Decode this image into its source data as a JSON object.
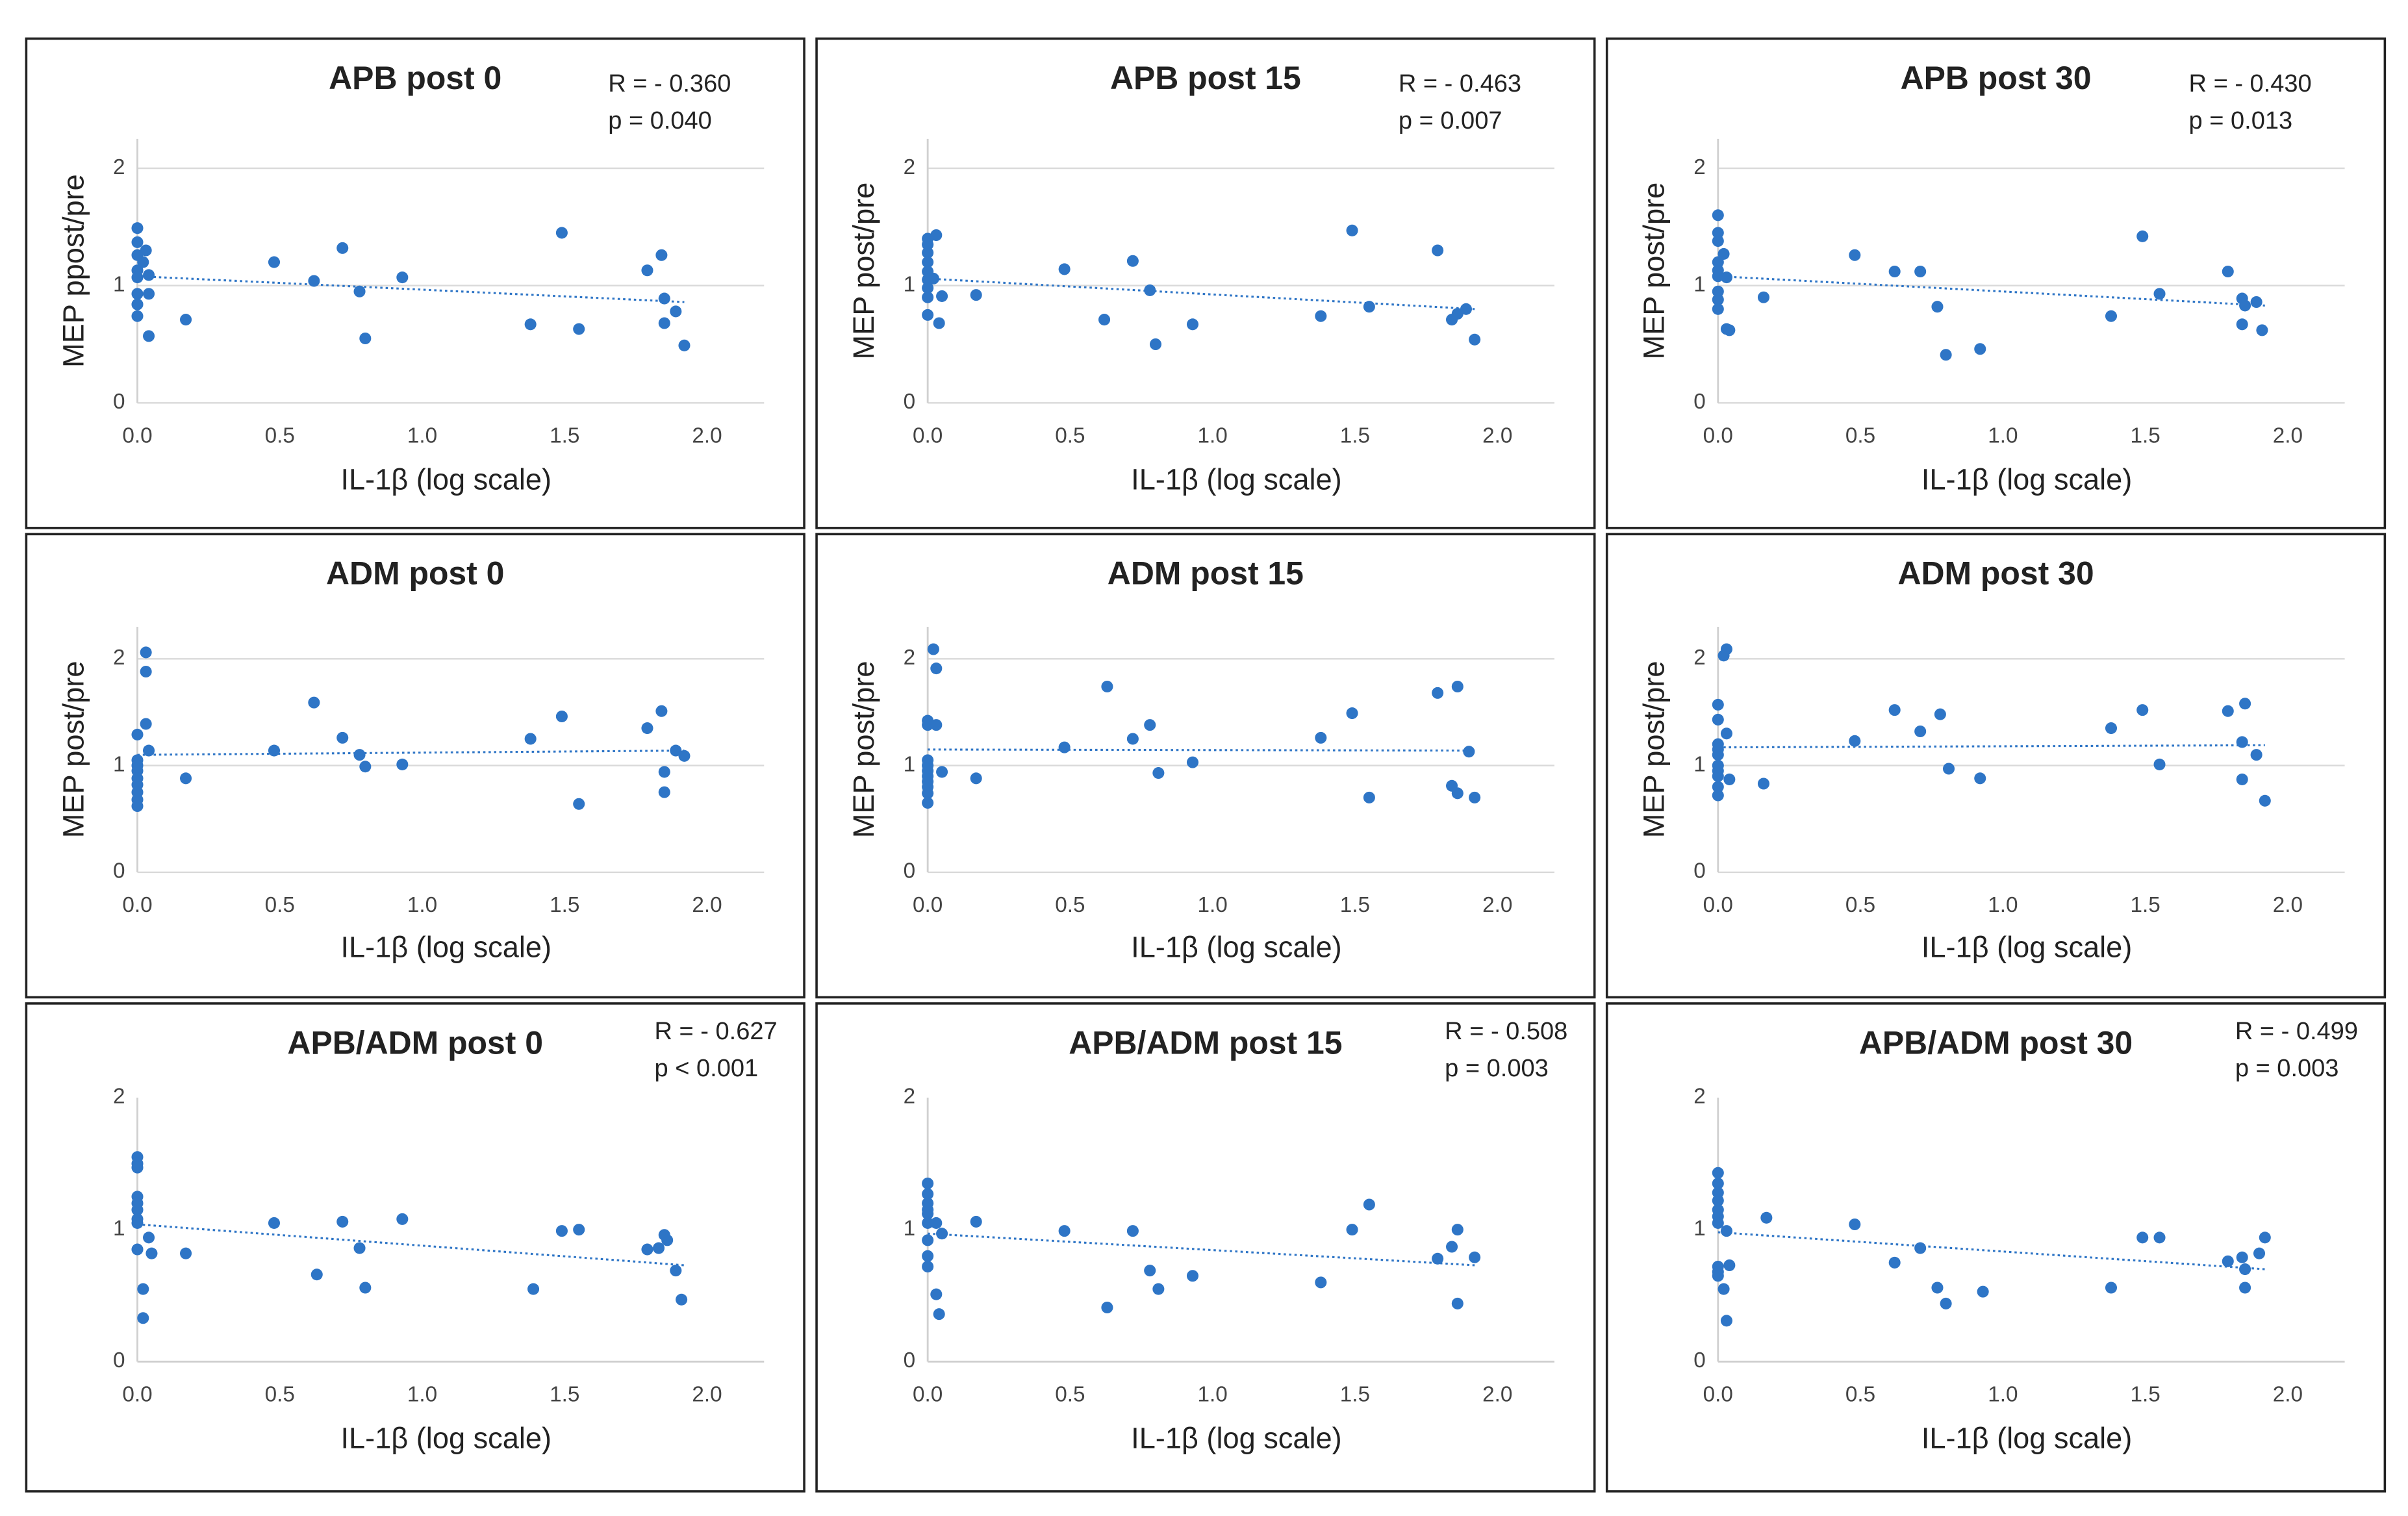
{
  "chart_data": [
    {
      "type": "scatter",
      "title": "APB post 0",
      "annotation": [
        "R = - 0.360",
        "p = 0.040"
      ],
      "x_label": "IL-1β (log scale)",
      "y_label": "MEP ppost/pre",
      "color": "#2e75c6",
      "grid": true,
      "x": [
        0,
        0,
        0,
        0,
        0,
        0,
        0,
        0,
        0.02,
        0.03,
        0.04,
        0.04,
        0.04,
        0.17,
        0.48,
        0.62,
        0.72,
        0.78,
        0.8,
        0.93,
        1.38,
        1.49,
        1.55,
        1.79,
        1.84,
        1.85,
        1.85,
        1.89,
        1.92
      ],
      "y": [
        1.49,
        1.37,
        1.26,
        1.13,
        1.07,
        0.93,
        0.84,
        0.74,
        1.2,
        1.3,
        0.93,
        0.57,
        1.09,
        0.71,
        1.2,
        1.04,
        1.32,
        0.95,
        0.55,
        1.07,
        0.67,
        1.45,
        0.63,
        1.13,
        1.26,
        0.89,
        0.68,
        0.78,
        0.49
      ],
      "trendline": {
        "x": [
          0,
          1.92
        ],
        "y": [
          1.08,
          0.86
        ]
      },
      "xlim": [
        0,
        2.2
      ],
      "ylim": [
        0,
        2.25
      ],
      "xticks": [
        {
          "value": 0,
          "label": "0.0"
        },
        {
          "value": 0.5,
          "label": "0.5"
        },
        {
          "value": 1,
          "label": "1.0"
        },
        {
          "value": 1.5,
          "label": "1.5"
        },
        {
          "value": 2,
          "label": "2.0"
        }
      ],
      "yticks": [
        0,
        1,
        2
      ]
    },
    {
      "type": "scatter",
      "title": "APB post 15",
      "annotation": [
        "R = - 0.463",
        "p = 0.007"
      ],
      "x_label": "IL-1β (log scale)",
      "y_label": "MEP post/pre",
      "color": "#2e75c6",
      "grid": true,
      "x": [
        0,
        0,
        0,
        0,
        0,
        0,
        0,
        0,
        0,
        0.03,
        0.02,
        0.04,
        0.05,
        0.17,
        0.48,
        0.62,
        0.72,
        0.78,
        0.8,
        0.93,
        1.38,
        1.49,
        1.55,
        1.79,
        1.84,
        1.86,
        1.89,
        1.92
      ],
      "y": [
        1.4,
        1.35,
        1.28,
        1.2,
        1.12,
        1.05,
        0.98,
        0.9,
        0.75,
        1.43,
        1.06,
        0.68,
        0.91,
        0.92,
        1.14,
        0.71,
        1.21,
        0.96,
        0.5,
        0.67,
        0.74,
        1.47,
        0.82,
        1.3,
        0.71,
        0.76,
        0.8,
        0.54
      ],
      "trendline": {
        "x": [
          0,
          1.92
        ],
        "y": [
          1.06,
          0.8
        ]
      },
      "xlim": [
        0,
        2.2
      ],
      "ylim": [
        0,
        2.25
      ],
      "xticks": [
        {
          "value": 0,
          "label": "0.0"
        },
        {
          "value": 0.5,
          "label": "0.5"
        },
        {
          "value": 1,
          "label": "1.0"
        },
        {
          "value": 1.5,
          "label": "1.5"
        },
        {
          "value": 2,
          "label": "2.0"
        }
      ],
      "yticks": [
        0,
        1,
        2
      ]
    },
    {
      "type": "scatter",
      "title": "APB post 30",
      "annotation": [
        "R = - 0.430",
        "p = 0.013"
      ],
      "x_label": "IL-1β (log scale)",
      "y_label": "MEP post/pre",
      "color": "#2e75c6",
      "grid": true,
      "x": [
        0,
        0,
        0,
        0,
        0,
        0,
        0,
        0,
        0,
        0.02,
        0.03,
        0.03,
        0.04,
        0.16,
        0.48,
        0.62,
        0.71,
        0.77,
        0.8,
        0.92,
        1.38,
        1.49,
        1.55,
        1.79,
        1.84,
        1.85,
        1.84,
        1.89,
        1.91
      ],
      "y": [
        1.6,
        1.45,
        1.38,
        1.2,
        1.13,
        1.08,
        0.95,
        0.88,
        0.8,
        1.27,
        1.07,
        0.63,
        0.62,
        0.9,
        1.26,
        1.12,
        1.12,
        0.82,
        0.41,
        0.46,
        0.74,
        1.42,
        0.93,
        1.12,
        0.89,
        0.83,
        0.67,
        0.86,
        0.62
      ],
      "trendline": {
        "x": [
          0,
          1.92
        ],
        "y": [
          1.08,
          0.83
        ]
      },
      "xlim": [
        0,
        2.2
      ],
      "ylim": [
        0,
        2.25
      ],
      "xticks": [
        {
          "value": 0,
          "label": "0.0"
        },
        {
          "value": 0.5,
          "label": "0.5"
        },
        {
          "value": 1,
          "label": "1.0"
        },
        {
          "value": 1.5,
          "label": "1.5"
        },
        {
          "value": 2,
          "label": "2.0"
        }
      ],
      "yticks": [
        0,
        1,
        2
      ]
    },
    {
      "type": "scatter",
      "title": "ADM post 0",
      "x_label": "IL-1β (log scale)",
      "y_label": "MEP post/pre",
      "color": "#2e75c6",
      "grid": true,
      "x": [
        0,
        0,
        0,
        0,
        0,
        0,
        0,
        0,
        0,
        0.03,
        0.03,
        0.03,
        0.04,
        0.17,
        0.48,
        0.62,
        0.72,
        0.78,
        0.8,
        0.93,
        1.38,
        1.49,
        1.55,
        1.79,
        1.84,
        1.85,
        1.85,
        1.89,
        1.92
      ],
      "y": [
        1.05,
        1.0,
        0.95,
        0.88,
        0.82,
        0.75,
        0.68,
        0.62,
        1.29,
        2.06,
        1.88,
        1.39,
        1.14,
        0.88,
        1.14,
        1.59,
        1.26,
        1.1,
        0.99,
        1.01,
        1.25,
        1.46,
        0.64,
        1.35,
        1.51,
        0.94,
        0.75,
        1.14,
        1.09
      ],
      "trendline": {
        "x": [
          0,
          1.92
        ],
        "y": [
          1.1,
          1.14
        ]
      },
      "xlim": [
        0,
        2.2
      ],
      "ylim": [
        0,
        2.3
      ],
      "xticks": [
        {
          "value": 0,
          "label": "0.0"
        },
        {
          "value": 0.5,
          "label": "0.5"
        },
        {
          "value": 1,
          "label": "1.0"
        },
        {
          "value": 1.5,
          "label": "1.5"
        },
        {
          "value": 2,
          "label": "2.0"
        }
      ],
      "yticks": [
        0,
        1,
        2
      ]
    },
    {
      "type": "scatter",
      "title": "ADM post 15",
      "x_label": "IL-1β (log scale)",
      "y_label": "MEP post/pre",
      "color": "#2e75c6",
      "grid": true,
      "x": [
        0,
        0,
        0,
        0,
        0,
        0,
        0,
        0,
        0,
        0,
        0.02,
        0.03,
        0.03,
        0.05,
        0.17,
        0.48,
        0.63,
        0.72,
        0.78,
        0.81,
        0.93,
        1.38,
        1.49,
        1.55,
        1.79,
        1.86,
        1.84,
        1.86,
        1.9,
        1.92
      ],
      "y": [
        1.42,
        1.38,
        1.05,
        1.0,
        0.95,
        0.9,
        0.85,
        0.8,
        0.74,
        0.65,
        2.09,
        1.91,
        1.38,
        0.94,
        0.88,
        1.17,
        1.74,
        1.25,
        1.38,
        0.93,
        1.03,
        1.26,
        1.49,
        0.7,
        1.68,
        1.74,
        0.81,
        0.74,
        1.13,
        0.7
      ],
      "trendline": {
        "x": [
          0,
          1.92
        ],
        "y": [
          1.15,
          1.14
        ]
      },
      "xlim": [
        0,
        2.2
      ],
      "ylim": [
        0,
        2.3
      ],
      "xticks": [
        {
          "value": 0,
          "label": "0.0"
        },
        {
          "value": 0.5,
          "label": "0.5"
        },
        {
          "value": 1,
          "label": "1.0"
        },
        {
          "value": 1.5,
          "label": "1.5"
        },
        {
          "value": 2,
          "label": "2.0"
        }
      ],
      "yticks": [
        0,
        1,
        2
      ]
    },
    {
      "type": "scatter",
      "title": "ADM post 30",
      "x_label": "IL-1β (log scale)",
      "y_label": "MEP post/pre",
      "color": "#2e75c6",
      "grid": true,
      "x": [
        0,
        0,
        0,
        0,
        0,
        0,
        0,
        0,
        0,
        0,
        0.02,
        0.03,
        0.03,
        0.04,
        0.16,
        0.48,
        0.62,
        0.71,
        0.78,
        0.81,
        0.92,
        1.38,
        1.49,
        1.55,
        1.79,
        1.85,
        1.84,
        1.89,
        1.84,
        1.92
      ],
      "y": [
        1.57,
        1.43,
        1.2,
        1.15,
        1.1,
        1.0,
        0.95,
        0.9,
        0.8,
        0.72,
        2.03,
        2.09,
        1.3,
        0.87,
        0.83,
        1.23,
        1.52,
        1.32,
        1.48,
        0.97,
        0.88,
        1.35,
        1.52,
        1.01,
        1.51,
        1.58,
        1.22,
        1.1,
        0.87,
        0.67
      ],
      "trendline": {
        "x": [
          0,
          1.92
        ],
        "y": [
          1.17,
          1.19
        ]
      },
      "xlim": [
        0,
        2.2
      ],
      "ylim": [
        0,
        2.3
      ],
      "xticks": [
        {
          "value": 0,
          "label": "0.0"
        },
        {
          "value": 0.5,
          "label": "0.5"
        },
        {
          "value": 1,
          "label": "1.0"
        },
        {
          "value": 1.5,
          "label": "1.5"
        },
        {
          "value": 2,
          "label": "2.0"
        }
      ],
      "yticks": [
        0,
        1,
        2
      ]
    },
    {
      "type": "scatter",
      "title": "APB/ADM post 0",
      "annotation": [
        "R = - 0.627",
        "p < 0.001"
      ],
      "x_label": "IL-1β (log scale)",
      "color": "#2e75c6",
      "grid": false,
      "x": [
        0,
        0,
        0,
        0,
        0,
        0,
        0,
        0,
        0,
        0.02,
        0.02,
        0.04,
        0.05,
        0.17,
        0.48,
        0.63,
        0.72,
        0.78,
        0.8,
        0.93,
        1.39,
        1.49,
        1.55,
        1.79,
        1.83,
        1.85,
        1.86,
        1.89,
        1.91
      ],
      "y": [
        1.55,
        1.5,
        1.47,
        1.25,
        1.2,
        1.15,
        1.08,
        1.05,
        0.85,
        0.33,
        0.55,
        0.94,
        0.82,
        0.82,
        1.05,
        0.66,
        1.06,
        0.86,
        0.56,
        1.08,
        0.55,
        0.99,
        1.0,
        0.85,
        0.86,
        0.96,
        0.92,
        0.69,
        0.47
      ],
      "trendline": {
        "x": [
          0,
          1.92
        ],
        "y": [
          1.04,
          0.73
        ]
      },
      "xlim": [
        0,
        2.2
      ],
      "ylim": [
        0,
        2
      ],
      "xticks": [
        {
          "value": 0,
          "label": "0.0"
        },
        {
          "value": 0.5,
          "label": "0.5"
        },
        {
          "value": 1,
          "label": "1.0"
        },
        {
          "value": 1.5,
          "label": "1.5"
        },
        {
          "value": 2,
          "label": "2.0"
        }
      ],
      "yticks": [
        0,
        1,
        2
      ]
    },
    {
      "type": "scatter",
      "title": "APB/ADM post 15",
      "annotation": [
        "R = - 0.508",
        "p = 0.003"
      ],
      "x_label": "IL-1β (log scale)",
      "color": "#2e75c6",
      "grid": false,
      "x": [
        0,
        0,
        0,
        0,
        0,
        0,
        0,
        0,
        0,
        0.03,
        0.04,
        0.03,
        0.05,
        0.17,
        0.48,
        0.63,
        0.72,
        0.78,
        0.81,
        0.93,
        1.38,
        1.49,
        1.55,
        1.79,
        1.86,
        1.84,
        1.86,
        1.92
      ],
      "y": [
        1.35,
        1.27,
        1.2,
        1.15,
        1.12,
        1.05,
        0.92,
        0.8,
        0.72,
        0.51,
        0.36,
        1.05,
        0.97,
        1.06,
        0.99,
        0.41,
        0.99,
        0.69,
        0.55,
        0.65,
        0.6,
        1.0,
        1.19,
        0.78,
        1.0,
        0.87,
        0.44,
        0.79
      ],
      "trendline": {
        "x": [
          0,
          1.92
        ],
        "y": [
          0.97,
          0.73
        ]
      },
      "xlim": [
        0,
        2.2
      ],
      "ylim": [
        0,
        2
      ],
      "xticks": [
        {
          "value": 0,
          "label": "0.0"
        },
        {
          "value": 0.5,
          "label": "0.5"
        },
        {
          "value": 1,
          "label": "1.0"
        },
        {
          "value": 1.5,
          "label": "1.5"
        },
        {
          "value": 2,
          "label": "2.0"
        }
      ],
      "yticks": [
        0,
        1,
        2
      ]
    },
    {
      "type": "scatter",
      "title": "APB/ADM post 30",
      "annotation": [
        "R = - 0.499",
        "p = 0.003"
      ],
      "x_label": "IL-1β (log scale)",
      "color": "#2e75c6",
      "grid": false,
      "x": [
        0,
        0,
        0,
        0,
        0,
        0,
        0,
        0,
        0,
        0,
        0.02,
        0.03,
        0.03,
        0.04,
        0.17,
        0.48,
        0.62,
        0.71,
        0.77,
        0.8,
        0.93,
        1.38,
        1.49,
        1.55,
        1.79,
        1.84,
        1.85,
        1.85,
        1.9,
        1.92
      ],
      "y": [
        1.43,
        1.35,
        1.28,
        1.22,
        1.15,
        1.1,
        1.05,
        0.72,
        0.68,
        0.65,
        0.55,
        0.31,
        0.99,
        0.73,
        1.09,
        1.04,
        0.75,
        0.86,
        0.56,
        0.44,
        0.53,
        0.56,
        0.94,
        0.94,
        0.76,
        0.79,
        0.56,
        0.7,
        0.82,
        0.94
      ],
      "trendline": {
        "x": [
          0,
          1.92
        ],
        "y": [
          0.98,
          0.7
        ]
      },
      "xlim": [
        0,
        2.2
      ],
      "ylim": [
        0,
        2
      ],
      "xticks": [
        {
          "value": 0,
          "label": "0.0"
        },
        {
          "value": 0.5,
          "label": "0.5"
        },
        {
          "value": 1,
          "label": "1.0"
        },
        {
          "value": 1.5,
          "label": "1.5"
        },
        {
          "value": 2,
          "label": "2.0"
        }
      ],
      "yticks": [
        0,
        1,
        2
      ]
    }
  ]
}
